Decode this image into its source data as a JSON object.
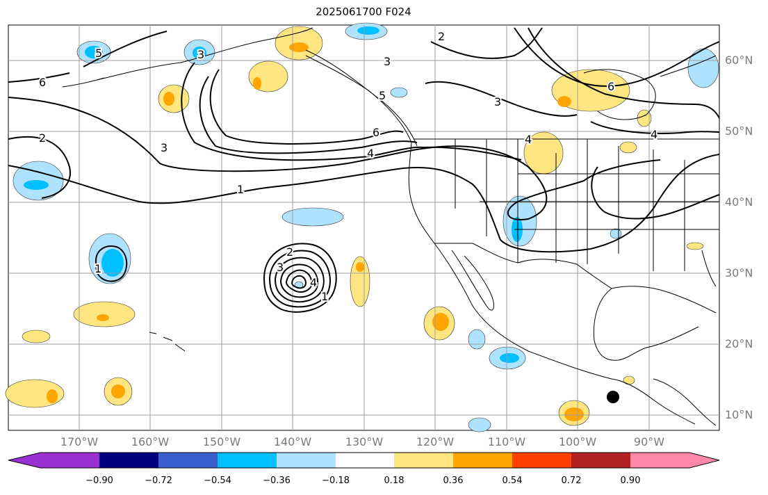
{
  "title": "2025061700 F024",
  "map": {
    "lon_labels": [
      "170°W",
      "160°W",
      "150°W",
      "140°W",
      "130°W",
      "120°W",
      "110°W",
      "100°W",
      "90°W"
    ],
    "lat_labels": [
      "60°N",
      "50°N",
      "40°N",
      "30°N",
      "20°N",
      "10°N"
    ],
    "contour_labels": [
      "1",
      "2",
      "3",
      "4",
      "5",
      "6"
    ],
    "contour_color": "#000000",
    "coast_color": "#000000",
    "grid_color": "#9e9e9e"
  },
  "colorbar": {
    "ticks": [
      "−0.90",
      "−0.72",
      "−0.54",
      "−0.36",
      "−0.18",
      "0.18",
      "0.36",
      "0.54",
      "0.72",
      "0.90"
    ],
    "colors": [
      "#9b30d0",
      "#000080",
      "#3a5fcd",
      "#00bfff",
      "#aee2ff",
      "#ffffff",
      "#ffe680",
      "#ffa500",
      "#ff4000",
      "#b22222",
      "#ff88aa"
    ]
  }
}
